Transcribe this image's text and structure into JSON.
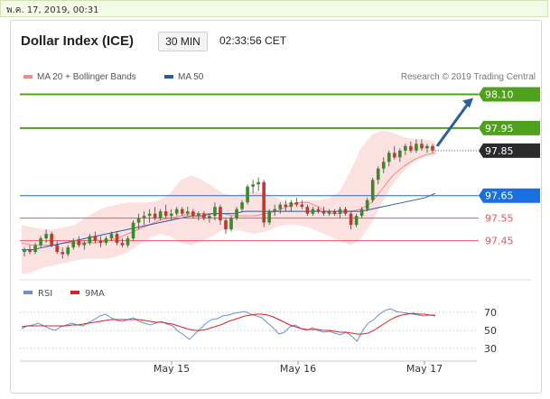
{
  "header": {
    "datetime": "พ.ค. 17, 2019, 00:31"
  },
  "chart_header": {
    "title": "Dollar Index (ICE)",
    "timeframe": "30 MIN",
    "time": "02:33:56 CET"
  },
  "legend": {
    "ma20_label": "MA 20 + Bollinger Bands",
    "ma50_label": "MA 50",
    "ma20_color": "#f28a8a",
    "ma50_color": "#2d5a9a",
    "copyright": "Research © 2019 Trading Central"
  },
  "rsi_legend": {
    "rsi_label": "RSI",
    "ma9_label": "9MA",
    "rsi_color": "#6b8fd6",
    "ma9_color": "#e02020"
  },
  "levels": [
    {
      "value": "98.10",
      "kind": "resistance",
      "color": "#4ea21b"
    },
    {
      "value": "97.95",
      "kind": "resistance",
      "color": "#4ea21b"
    },
    {
      "value": "97.85",
      "kind": "last-price",
      "color": "#2b2b2b"
    },
    {
      "value": "97.65",
      "kind": "pivot",
      "color": "#1a6fe0"
    },
    {
      "value": "97.55",
      "kind": "support",
      "color": "#e05a6a"
    },
    {
      "value": "97.45",
      "kind": "support",
      "color": "#e05a6a"
    }
  ],
  "x_axis": {
    "labels": [
      "May 15",
      "May 16",
      "May 17"
    ]
  },
  "rsi_axis": {
    "labels": [
      "70",
      "50",
      "30"
    ]
  },
  "chart_data": [
    {
      "type": "candlestick",
      "title": "Dollar Index (ICE)",
      "y_range": [
        97.3,
        98.15
      ],
      "x_labels": [
        "May 15",
        "May 16",
        "May 17"
      ],
      "candles": [
        {
          "o": 97.4,
          "h": 97.42,
          "l": 97.38,
          "c": 97.41
        },
        {
          "o": 97.41,
          "h": 97.43,
          "l": 97.39,
          "c": 97.4
        },
        {
          "o": 97.4,
          "h": 97.44,
          "l": 97.39,
          "c": 97.43
        },
        {
          "o": 97.43,
          "h": 97.47,
          "l": 97.42,
          "c": 97.46
        },
        {
          "o": 97.46,
          "h": 97.5,
          "l": 97.44,
          "c": 97.48
        },
        {
          "o": 97.48,
          "h": 97.49,
          "l": 97.42,
          "c": 97.43
        },
        {
          "o": 97.43,
          "h": 97.45,
          "l": 97.39,
          "c": 97.4
        },
        {
          "o": 97.4,
          "h": 97.42,
          "l": 97.37,
          "c": 97.39
        },
        {
          "o": 97.39,
          "h": 97.43,
          "l": 97.38,
          "c": 97.42
        },
        {
          "o": 97.42,
          "h": 97.46,
          "l": 97.41,
          "c": 97.45
        },
        {
          "o": 97.45,
          "h": 97.47,
          "l": 97.42,
          "c": 97.43
        },
        {
          "o": 97.43,
          "h": 97.45,
          "l": 97.41,
          "c": 97.44
        },
        {
          "o": 97.44,
          "h": 97.48,
          "l": 97.43,
          "c": 97.47
        },
        {
          "o": 97.47,
          "h": 97.49,
          "l": 97.44,
          "c": 97.45
        },
        {
          "o": 97.45,
          "h": 97.47,
          "l": 97.42,
          "c": 97.44
        },
        {
          "o": 97.44,
          "h": 97.47,
          "l": 97.43,
          "c": 97.46
        },
        {
          "o": 97.46,
          "h": 97.49,
          "l": 97.45,
          "c": 97.48
        },
        {
          "o": 97.48,
          "h": 97.49,
          "l": 97.43,
          "c": 97.44
        },
        {
          "o": 97.44,
          "h": 97.46,
          "l": 97.42,
          "c": 97.43
        },
        {
          "o": 97.43,
          "h": 97.47,
          "l": 97.42,
          "c": 97.46
        },
        {
          "o": 97.46,
          "h": 97.54,
          "l": 97.45,
          "c": 97.53
        },
        {
          "o": 97.53,
          "h": 97.57,
          "l": 97.5,
          "c": 97.55
        },
        {
          "o": 97.55,
          "h": 97.58,
          "l": 97.52,
          "c": 97.56
        },
        {
          "o": 97.56,
          "h": 97.59,
          "l": 97.53,
          "c": 97.57
        },
        {
          "o": 97.57,
          "h": 97.6,
          "l": 97.54,
          "c": 97.55
        },
        {
          "o": 97.55,
          "h": 97.59,
          "l": 97.54,
          "c": 97.58
        },
        {
          "o": 97.58,
          "h": 97.61,
          "l": 97.55,
          "c": 97.56
        },
        {
          "o": 97.56,
          "h": 97.59,
          "l": 97.54,
          "c": 97.57
        },
        {
          "o": 97.57,
          "h": 97.6,
          "l": 97.56,
          "c": 97.59
        },
        {
          "o": 97.59,
          "h": 97.6,
          "l": 97.56,
          "c": 97.57
        },
        {
          "o": 97.57,
          "h": 97.6,
          "l": 97.56,
          "c": 97.58
        },
        {
          "o": 97.58,
          "h": 97.59,
          "l": 97.55,
          "c": 97.56
        },
        {
          "o": 97.56,
          "h": 97.58,
          "l": 97.54,
          "c": 97.57
        },
        {
          "o": 97.57,
          "h": 97.58,
          "l": 97.54,
          "c": 97.55
        },
        {
          "o": 97.55,
          "h": 97.57,
          "l": 97.53,
          "c": 97.56
        },
        {
          "o": 97.56,
          "h": 97.62,
          "l": 97.54,
          "c": 97.6
        },
        {
          "o": 97.6,
          "h": 97.61,
          "l": 97.52,
          "c": 97.54
        },
        {
          "o": 97.54,
          "h": 97.55,
          "l": 97.48,
          "c": 97.5
        },
        {
          "o": 97.5,
          "h": 97.56,
          "l": 97.49,
          "c": 97.55
        },
        {
          "o": 97.55,
          "h": 97.6,
          "l": 97.54,
          "c": 97.59
        },
        {
          "o": 97.59,
          "h": 97.63,
          "l": 97.58,
          "c": 97.62
        },
        {
          "o": 97.62,
          "h": 97.7,
          "l": 97.61,
          "c": 97.69
        },
        {
          "o": 97.69,
          "h": 97.72,
          "l": 97.66,
          "c": 97.7
        },
        {
          "o": 97.7,
          "h": 97.73,
          "l": 97.67,
          "c": 97.71
        },
        {
          "o": 97.71,
          "h": 97.72,
          "l": 97.51,
          "c": 97.53
        },
        {
          "o": 97.53,
          "h": 97.59,
          "l": 97.52,
          "c": 97.58
        },
        {
          "o": 97.58,
          "h": 97.61,
          "l": 97.56,
          "c": 97.59
        },
        {
          "o": 97.59,
          "h": 97.62,
          "l": 97.57,
          "c": 97.61
        },
        {
          "o": 97.61,
          "h": 97.63,
          "l": 97.58,
          "c": 97.6
        },
        {
          "o": 97.6,
          "h": 97.63,
          "l": 97.58,
          "c": 97.62
        },
        {
          "o": 97.62,
          "h": 97.64,
          "l": 97.6,
          "c": 97.61
        },
        {
          "o": 97.61,
          "h": 97.63,
          "l": 97.59,
          "c": 97.6
        },
        {
          "o": 97.6,
          "h": 97.61,
          "l": 97.56,
          "c": 97.57
        },
        {
          "o": 97.57,
          "h": 97.6,
          "l": 97.56,
          "c": 97.59
        },
        {
          "o": 97.59,
          "h": 97.6,
          "l": 97.57,
          "c": 97.58
        },
        {
          "o": 97.58,
          "h": 97.6,
          "l": 97.56,
          "c": 97.57
        },
        {
          "o": 97.57,
          "h": 97.59,
          "l": 97.56,
          "c": 97.58
        },
        {
          "o": 97.58,
          "h": 97.59,
          "l": 97.56,
          "c": 97.57
        },
        {
          "o": 97.57,
          "h": 97.6,
          "l": 97.55,
          "c": 97.59
        },
        {
          "o": 97.59,
          "h": 97.6,
          "l": 97.56,
          "c": 97.57
        },
        {
          "o": 97.57,
          "h": 97.58,
          "l": 97.5,
          "c": 97.52
        },
        {
          "o": 97.52,
          "h": 97.57,
          "l": 97.51,
          "c": 97.56
        },
        {
          "o": 97.56,
          "h": 97.6,
          "l": 97.55,
          "c": 97.59
        },
        {
          "o": 97.59,
          "h": 97.64,
          "l": 97.58,
          "c": 97.63
        },
        {
          "o": 97.63,
          "h": 97.73,
          "l": 97.62,
          "c": 97.72
        },
        {
          "o": 97.72,
          "h": 97.78,
          "l": 97.7,
          "c": 97.77
        },
        {
          "o": 97.77,
          "h": 97.82,
          "l": 97.75,
          "c": 97.8
        },
        {
          "o": 97.8,
          "h": 97.85,
          "l": 97.78,
          "c": 97.84
        },
        {
          "o": 97.84,
          "h": 97.87,
          "l": 97.81,
          "c": 97.82
        },
        {
          "o": 97.82,
          "h": 97.86,
          "l": 97.8,
          "c": 97.85
        },
        {
          "o": 97.85,
          "h": 97.88,
          "l": 97.83,
          "c": 97.87
        },
        {
          "o": 97.87,
          "h": 97.89,
          "l": 97.84,
          "c": 97.85
        },
        {
          "o": 97.85,
          "h": 97.9,
          "l": 97.84,
          "c": 97.88
        },
        {
          "o": 97.88,
          "h": 97.9,
          "l": 97.85,
          "c": 97.86
        },
        {
          "o": 97.86,
          "h": 97.88,
          "l": 97.84,
          "c": 97.87
        },
        {
          "o": 97.87,
          "h": 97.88,
          "l": 97.84,
          "c": 97.85
        }
      ],
      "ma20": [
        97.44,
        97.43,
        97.43,
        97.43,
        97.44,
        97.44,
        97.44,
        97.44,
        97.45,
        97.46,
        97.48,
        97.5,
        97.52,
        97.54,
        97.55,
        97.56,
        97.57,
        97.57,
        97.57,
        97.57,
        97.56,
        97.56,
        97.56,
        97.57,
        97.58,
        97.6,
        97.62,
        97.62,
        97.6,
        97.57,
        97.57,
        97.58,
        97.59,
        97.62,
        97.68,
        97.74,
        97.78,
        97.81,
        97.83,
        97.84
      ],
      "ma50": [
        97.41,
        97.41,
        97.42,
        97.43,
        97.44,
        97.45,
        97.46,
        97.47,
        97.48,
        97.49,
        97.5,
        97.51,
        97.52,
        97.53,
        97.54,
        97.55,
        97.56,
        97.56,
        97.57,
        97.57,
        97.57,
        97.58,
        97.58,
        97.58,
        97.58,
        97.58,
        97.58,
        97.58,
        97.58,
        97.58,
        97.58,
        97.58,
        97.58,
        97.59,
        97.6,
        97.61,
        97.62,
        97.63,
        97.64,
        97.66
      ],
      "bollinger_upper": [
        97.52,
        97.51,
        97.5,
        97.5,
        97.51,
        97.52,
        97.55,
        97.58,
        97.6,
        97.61,
        97.62,
        97.62,
        97.62,
        97.63,
        97.66,
        97.72,
        97.74,
        97.72,
        97.69,
        97.66,
        97.65,
        97.66,
        97.67,
        97.66,
        97.64,
        97.62,
        97.62,
        97.63,
        97.63,
        97.64,
        97.67,
        97.76,
        97.86,
        97.92,
        97.94,
        97.93,
        97.91,
        97.9,
        97.9,
        97.89
      ],
      "bollinger_lower": [
        97.3,
        97.31,
        97.33,
        97.34,
        97.35,
        97.36,
        97.37,
        97.37,
        97.37,
        97.38,
        97.4,
        97.43,
        97.46,
        97.48,
        97.47,
        97.44,
        97.43,
        97.45,
        97.47,
        97.5,
        97.5,
        97.49,
        97.48,
        97.49,
        97.51,
        97.52,
        97.52,
        97.51,
        97.49,
        97.47,
        97.45,
        97.43,
        97.46,
        97.53,
        97.62,
        97.7,
        97.76,
        97.8,
        97.82,
        97.83
      ]
    },
    {
      "type": "line",
      "title": "",
      "y_range": [
        20,
        80
      ],
      "y_ticks": [
        70,
        50,
        30
      ],
      "series": [
        {
          "name": "RSI",
          "values": [
            52,
            55,
            56,
            58,
            55,
            52,
            50,
            54,
            56,
            58,
            56,
            55,
            59,
            62,
            66,
            68,
            64,
            61,
            60,
            62,
            64,
            60,
            58,
            56,
            58,
            60,
            57,
            55,
            49,
            45,
            40,
            46,
            52,
            58,
            62,
            63,
            66,
            67,
            69,
            70,
            71,
            68,
            66,
            64,
            58,
            53,
            46,
            48,
            54,
            56,
            52,
            50,
            53,
            50,
            48,
            49,
            47,
            45,
            48,
            44,
            38,
            50,
            58,
            62,
            68,
            72,
            74,
            71,
            70,
            69,
            68,
            67,
            66,
            67,
            66
          ]
        },
        {
          "name": "9MA",
          "values": [
            54,
            55,
            55,
            55,
            55,
            55,
            55,
            55,
            55,
            56,
            56,
            57,
            58,
            59,
            60,
            61,
            62,
            62,
            62,
            62,
            62,
            62,
            61,
            60,
            59,
            59,
            58,
            57,
            55,
            53,
            51,
            50,
            50,
            51,
            53,
            55,
            57,
            60,
            62,
            64,
            66,
            67,
            68,
            68,
            67,
            65,
            62,
            59,
            56,
            54,
            52,
            51,
            51,
            51,
            50,
            50,
            49,
            48,
            48,
            47,
            46,
            46,
            47,
            50,
            54,
            58,
            62,
            65,
            67,
            68,
            69,
            68,
            68,
            67,
            67
          ]
        }
      ]
    }
  ]
}
